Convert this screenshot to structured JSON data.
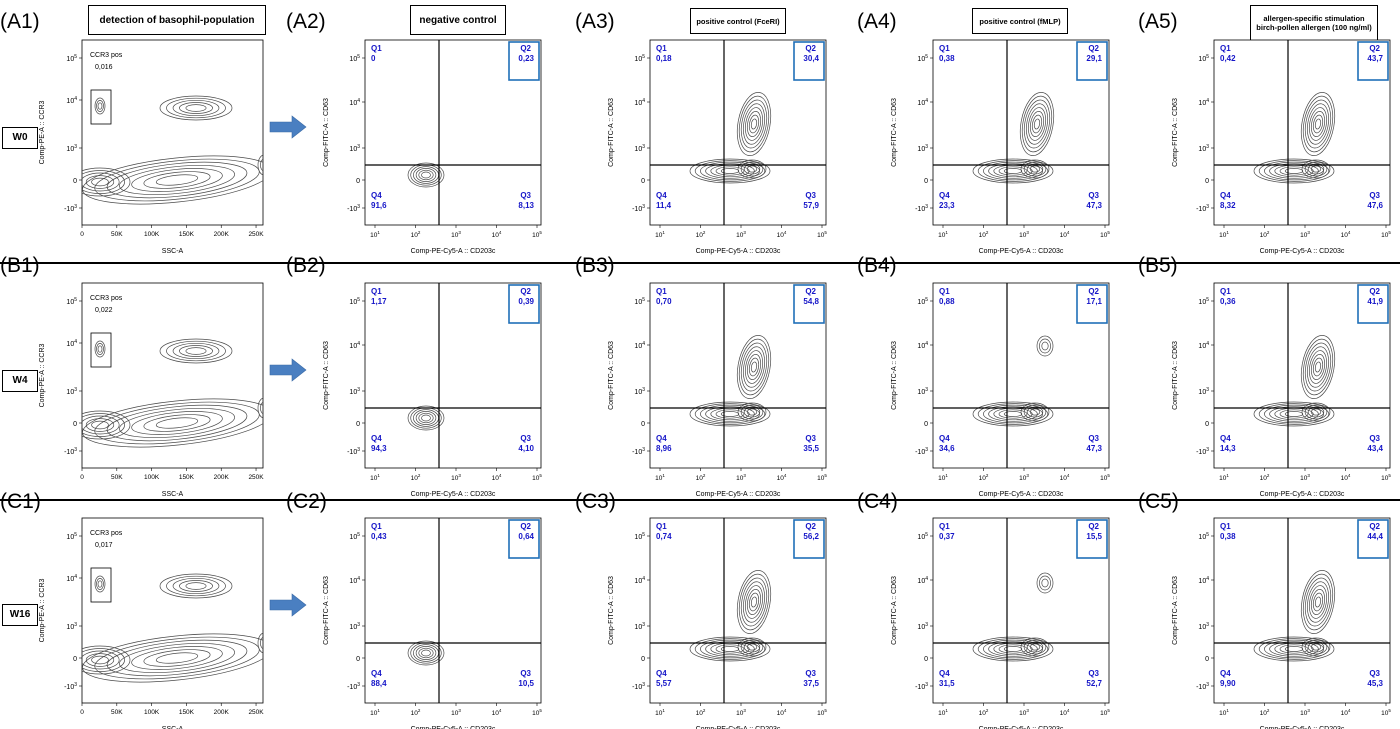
{
  "headers": [
    {
      "lines": [
        "detection of basophil-population"
      ]
    },
    {
      "lines": [
        "negative control"
      ]
    },
    {
      "lines": [
        "positive control (FceRI)"
      ]
    },
    {
      "lines": [
        "positive control (fMLP)"
      ]
    },
    {
      "lines": [
        "allergen-specific stimulation",
        "birch-pollen allergen (100 ng/ml)"
      ]
    }
  ],
  "colors": {
    "quadrant_text": "#1515c8",
    "q2_box": "#1f6fb8",
    "arrow": "#4a7fc1",
    "contour": "#4a4a4a"
  },
  "chart_data": [
    {
      "row": "W0",
      "gate_panel": {
        "label": "(A1)",
        "type": "contour",
        "gate_label": "CCR3 pos",
        "gate_value": "0,016",
        "xlabel": "SSC-A",
        "ylabel": "Comp-PE-A :: CCR3",
        "x_ticks": [
          "0",
          "50K",
          "100K",
          "150K",
          "200K",
          "250K"
        ]
      },
      "quadrant_panels": [
        {
          "label": "(A2)",
          "Q1": "0",
          "Q2": "0,23",
          "Q3": "8,13",
          "Q4": "91,6"
        },
        {
          "label": "(A3)",
          "Q1": "0,18",
          "Q2": "30,4",
          "Q3": "57,9",
          "Q4": "11,4"
        },
        {
          "label": "(A4)",
          "Q1": "0,38",
          "Q2": "29,1",
          "Q3": "47,3",
          "Q4": "23,3"
        },
        {
          "label": "(A5)",
          "Q1": "0,42",
          "Q2": "43,7",
          "Q3": "47,6",
          "Q4": "8,32"
        }
      ]
    },
    {
      "row": "W4",
      "gate_panel": {
        "label": "(B1)",
        "type": "contour",
        "gate_label": "CCR3 pos",
        "gate_value": "0,022",
        "xlabel": "SSC-A",
        "ylabel": "Comp-PE-A :: CCR3",
        "x_ticks": [
          "0",
          "50K",
          "100K",
          "150K",
          "200K",
          "250K"
        ]
      },
      "quadrant_panels": [
        {
          "label": "(B2)",
          "Q1": "1,17",
          "Q2": "0,39",
          "Q3": "4,10",
          "Q4": "94,3"
        },
        {
          "label": "(B3)",
          "Q1": "0,70",
          "Q2": "54,8",
          "Q3": "35,5",
          "Q4": "8,96"
        },
        {
          "label": "(B4)",
          "Q1": "0,88",
          "Q2": "17,1",
          "Q3": "47,3",
          "Q4": "34,6"
        },
        {
          "label": "(B5)",
          "Q1": "0,36",
          "Q2": "41,9",
          "Q3": "43,4",
          "Q4": "14,3"
        }
      ]
    },
    {
      "row": "W16",
      "gate_panel": {
        "label": "(C1)",
        "type": "contour",
        "gate_label": "CCR3 pos",
        "gate_value": "0,017",
        "xlabel": "SSC-A",
        "ylabel": "Comp-PE-A :: CCR3",
        "x_ticks": [
          "0",
          "50K",
          "100K",
          "150K",
          "200K",
          "250K"
        ]
      },
      "quadrant_panels": [
        {
          "label": "(C2)",
          "Q1": "0,43",
          "Q2": "0,64",
          "Q3": "10,5",
          "Q4": "88,4"
        },
        {
          "label": "(C3)",
          "Q1": "0,74",
          "Q2": "56,2",
          "Q3": "37,5",
          "Q4": "5,57"
        },
        {
          "label": "(C4)",
          "Q1": "0,37",
          "Q2": "15,5",
          "Q3": "52,7",
          "Q4": "31,5"
        },
        {
          "label": "(C5)",
          "Q1": "0,38",
          "Q2": "44,4",
          "Q3": "45,3",
          "Q4": "9,90"
        }
      ]
    }
  ],
  "quadrant_axes": {
    "xlabel": "Comp-PE-Cy5-A :: CD203c",
    "ylabel": "Comp-FITC-A :: CD63",
    "x_ticks": [
      "10^1",
      "10^2",
      "10^3",
      "10^4",
      "10^5"
    ],
    "y_ticks": [
      "10^5",
      "10^4",
      "10^3",
      "0",
      "-10^3"
    ]
  },
  "gate_y_ticks": [
    "10^5",
    "10^4",
    "10^3",
    "0",
    "-10^3"
  ]
}
